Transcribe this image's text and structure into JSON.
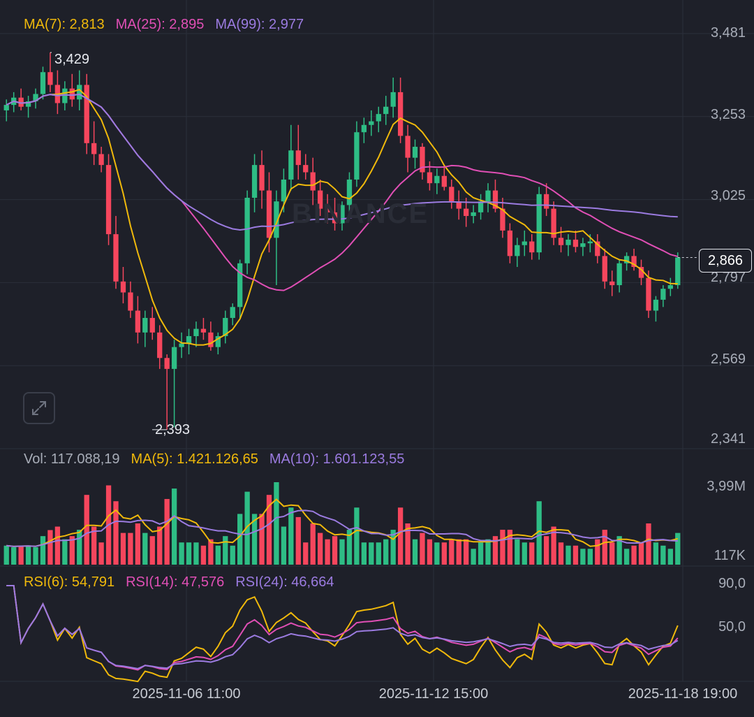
{
  "ma_legend": {
    "ma7": "MA(7): 2,813",
    "ma25": "MA(25): 2,895",
    "ma99": "MA(99): 2,977"
  },
  "vol_legend": {
    "vol": "Vol: 117.088,19",
    "ma5": "MA(5): 1.421.126,65",
    "ma10": "MA(10): 1.601.123,55"
  },
  "rsi_legend": {
    "rsi6": "RSI(6): 54,791",
    "rsi14": "RSI(14): 47,576",
    "rsi24": "RSI(24): 46,664"
  },
  "price_axis": [
    "3,481",
    "3,253",
    "3,025",
    "2,797",
    "2,569",
    "2,341"
  ],
  "volume_axis": [
    "3,99M",
    "117K"
  ],
  "rsi_axis": [
    "90,0",
    "50,0"
  ],
  "time_axis": [
    "2025-11-06 11:00",
    "2025-11-12 15:00",
    "2025-11-18 19:00"
  ],
  "current_price": "2,866",
  "high_label": "3,429",
  "low_label": "2,393",
  "watermark": "BINANCE",
  "colors": {
    "up": "#2ebd85",
    "down": "#f6465d",
    "ma7": "#f0b90b",
    "ma25": "#e04fb5",
    "ma99": "#9b7be0",
    "grid": "#2b2f3a",
    "bg": "#1e2029"
  },
  "chart_data": {
    "type": "candlestick",
    "price_axis_range": [
      2341,
      3481
    ],
    "price_ticks": [
      3481,
      3253,
      3025,
      2797,
      2569,
      2341
    ],
    "high": 3429,
    "low": 2393,
    "last": 2866,
    "ma_last": {
      "ma7": 2813,
      "ma25": 2895,
      "ma99": 2977
    },
    "candles_ohlc": [
      [
        3270,
        3300,
        3240,
        3285
      ],
      [
        3285,
        3320,
        3265,
        3305
      ],
      [
        3305,
        3330,
        3270,
        3280
      ],
      [
        3280,
        3310,
        3250,
        3295
      ],
      [
        3295,
        3330,
        3275,
        3315
      ],
      [
        3315,
        3390,
        3300,
        3375
      ],
      [
        3375,
        3429,
        3320,
        3340
      ],
      [
        3340,
        3380,
        3260,
        3290
      ],
      [
        3290,
        3350,
        3270,
        3330
      ],
      [
        3330,
        3370,
        3280,
        3300
      ],
      [
        3300,
        3380,
        3270,
        3340
      ],
      [
        3340,
        3370,
        3150,
        3180
      ],
      [
        3180,
        3240,
        3120,
        3150
      ],
      [
        3150,
        3170,
        3100,
        3120
      ],
      [
        3120,
        3150,
        2900,
        2930
      ],
      [
        2930,
        2980,
        2780,
        2800
      ],
      [
        2800,
        2840,
        2740,
        2770
      ],
      [
        2770,
        2800,
        2700,
        2720
      ],
      [
        2720,
        2760,
        2630,
        2660
      ],
      [
        2660,
        2720,
        2620,
        2700
      ],
      [
        2700,
        2730,
        2640,
        2660
      ],
      [
        2660,
        2680,
        2560,
        2590
      ],
      [
        2590,
        2600,
        2393,
        2560
      ],
      [
        2560,
        2640,
        2400,
        2620
      ],
      [
        2620,
        2660,
        2590,
        2630
      ],
      [
        2630,
        2670,
        2600,
        2650
      ],
      [
        2650,
        2690,
        2620,
        2670
      ],
      [
        2670,
        2700,
        2640,
        2660
      ],
      [
        2660,
        2690,
        2610,
        2620
      ],
      [
        2620,
        2660,
        2600,
        2650
      ],
      [
        2650,
        2720,
        2630,
        2700
      ],
      [
        2700,
        2740,
        2680,
        2730
      ],
      [
        2730,
        2860,
        2700,
        2850
      ],
      [
        2850,
        3050,
        2820,
        3030
      ],
      [
        3030,
        3150,
        2990,
        3120
      ],
      [
        3120,
        3160,
        3000,
        3050
      ],
      [
        3050,
        3100,
        2880,
        2920
      ],
      [
        2920,
        3050,
        2790,
        3020
      ],
      [
        3020,
        3110,
        2990,
        3080
      ],
      [
        3080,
        3230,
        3050,
        3160
      ],
      [
        3160,
        3230,
        3080,
        3120
      ],
      [
        3120,
        3150,
        3080,
        3100
      ],
      [
        3100,
        3140,
        3010,
        3050
      ],
      [
        3050,
        3080,
        2980,
        3000
      ],
      [
        3000,
        3040,
        2960,
        2990
      ],
      [
        2990,
        3030,
        2940,
        2960
      ],
      [
        2960,
        3020,
        2940,
        3010
      ],
      [
        3010,
        3100,
        2990,
        3080
      ],
      [
        3080,
        3240,
        3060,
        3210
      ],
      [
        3210,
        3250,
        3180,
        3230
      ],
      [
        3230,
        3270,
        3200,
        3240
      ],
      [
        3240,
        3280,
        3210,
        3260
      ],
      [
        3260,
        3310,
        3230,
        3280
      ],
      [
        3280,
        3360,
        3250,
        3320
      ],
      [
        3320,
        3360,
        3180,
        3200
      ],
      [
        3200,
        3230,
        3100,
        3140
      ],
      [
        3140,
        3190,
        3110,
        3170
      ],
      [
        3170,
        3180,
        3080,
        3100
      ],
      [
        3100,
        3130,
        3050,
        3070
      ],
      [
        3070,
        3110,
        3040,
        3090
      ],
      [
        3090,
        3120,
        3050,
        3060
      ],
      [
        3060,
        3080,
        3000,
        3020
      ],
      [
        3020,
        3050,
        2970,
        3000
      ],
      [
        3000,
        3030,
        2950,
        2980
      ],
      [
        2980,
        3010,
        2960,
        2990
      ],
      [
        2990,
        3040,
        2970,
        3020
      ],
      [
        3020,
        3070,
        2990,
        3050
      ],
      [
        3050,
        3080,
        2990,
        3000
      ],
      [
        3000,
        3030,
        2920,
        2940
      ],
      [
        2940,
        2960,
        2850,
        2870
      ],
      [
        2870,
        2920,
        2840,
        2900
      ],
      [
        2900,
        2940,
        2870,
        2910
      ],
      [
        2910,
        2930,
        2860,
        2880
      ],
      [
        2880,
        3060,
        2860,
        3040
      ],
      [
        3040,
        3070,
        2980,
        3000
      ],
      [
        3000,
        3020,
        2900,
        2920
      ],
      [
        2920,
        2950,
        2880,
        2900
      ],
      [
        2900,
        2930,
        2870,
        2915
      ],
      [
        2915,
        2940,
        2880,
        2895
      ],
      [
        2895,
        2920,
        2870,
        2905
      ],
      [
        2905,
        2930,
        2880,
        2910
      ],
      [
        2910,
        2930,
        2850,
        2870
      ],
      [
        2870,
        2890,
        2780,
        2800
      ],
      [
        2800,
        2830,
        2760,
        2790
      ],
      [
        2790,
        2860,
        2770,
        2850
      ],
      [
        2850,
        2880,
        2830,
        2870
      ],
      [
        2870,
        2890,
        2830,
        2840
      ],
      [
        2840,
        2860,
        2790,
        2810
      ],
      [
        2810,
        2830,
        2700,
        2720
      ],
      [
        2720,
        2760,
        2690,
        2750
      ],
      [
        2750,
        2790,
        2730,
        2780
      ],
      [
        2780,
        2810,
        2760,
        2790
      ],
      [
        2790,
        2880,
        2780,
        2866
      ]
    ],
    "volume": {
      "axis_labels": [
        "3,99M",
        "117K"
      ],
      "last": 117088.19,
      "ma5_last": 1421126.65,
      "ma10_last": 1601123.55
    },
    "rsi": {
      "axis_labels": [
        "90,0",
        "50,0"
      ],
      "rsi6_last": 54.791,
      "rsi14_last": 47.576,
      "rsi24_last": 46.664
    },
    "x_tick_labels": [
      "2025-11-06 11:00",
      "2025-11-12 15:00",
      "2025-11-18 19:00"
    ]
  }
}
